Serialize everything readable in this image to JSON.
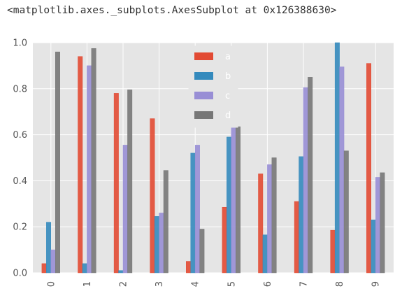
{
  "output_text": "<matplotlib.axes._subplots.AxesSubplot at 0x126388630>",
  "chart_data": {
    "type": "bar",
    "style": "ggplot",
    "categories": [
      "0",
      "1",
      "2",
      "3",
      "4",
      "5",
      "6",
      "7",
      "8",
      "9"
    ],
    "series": [
      {
        "name": "a",
        "color": "#E24A33",
        "values": [
          0.04,
          0.94,
          0.78,
          0.67,
          0.05,
          0.285,
          0.43,
          0.31,
          0.185,
          0.91
        ]
      },
      {
        "name": "b",
        "color": "#348ABD",
        "values": [
          0.22,
          0.04,
          0.01,
          0.245,
          0.52,
          0.59,
          0.165,
          0.505,
          1.0,
          0.23
        ]
      },
      {
        "name": "c",
        "color": "#988ED5",
        "values": [
          0.1,
          0.9,
          0.555,
          0.26,
          0.555,
          0.64,
          0.47,
          0.805,
          0.895,
          0.415
        ]
      },
      {
        "name": "d",
        "color": "#777777",
        "values": [
          0.96,
          0.975,
          0.795,
          0.445,
          0.19,
          0.635,
          0.5,
          0.85,
          0.53,
          0.435
        ]
      }
    ],
    "ylim": [
      0,
      1.0
    ],
    "yticks": [
      "0.0",
      "0.2",
      "0.4",
      "0.6",
      "0.8",
      "1.0"
    ],
    "grid": true,
    "legend_position": "top-center",
    "xlabel": "",
    "ylabel": "",
    "title": ""
  }
}
